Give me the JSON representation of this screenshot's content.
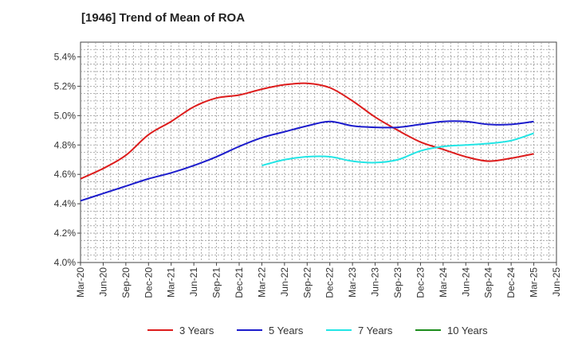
{
  "chart_data": {
    "type": "line",
    "title": "[1946]  Trend of Mean of ROA",
    "xlabel": "",
    "ylabel": "",
    "ylim": [
      4.0,
      5.5
    ],
    "yticks": [
      "4.0%",
      "4.2%",
      "4.4%",
      "4.6%",
      "4.8%",
      "5.0%",
      "5.2%",
      "5.4%"
    ],
    "ytick_values": [
      4.0,
      4.2,
      4.4,
      4.6,
      4.8,
      5.0,
      5.2,
      5.4
    ],
    "categories": [
      "Mar-20",
      "Jun-20",
      "Sep-20",
      "Dec-20",
      "Mar-21",
      "Jun-21",
      "Sep-21",
      "Dec-21",
      "Mar-22",
      "Jun-22",
      "Sep-22",
      "Dec-22",
      "Mar-23",
      "Jun-23",
      "Sep-23",
      "Dec-23",
      "Mar-24",
      "Jun-24",
      "Sep-24",
      "Dec-24",
      "Mar-25",
      "Jun-25"
    ],
    "grid": true,
    "legend_position": "bottom",
    "series": [
      {
        "name": "3 Years",
        "color": "#dd1c1c",
        "values": [
          4.57,
          4.64,
          4.73,
          4.87,
          4.96,
          5.06,
          5.12,
          5.14,
          5.18,
          5.21,
          5.22,
          5.19,
          5.1,
          4.99,
          4.9,
          4.82,
          4.77,
          4.72,
          4.69,
          4.71,
          4.74,
          null
        ]
      },
      {
        "name": "5 Years",
        "color": "#1c1ccc",
        "values": [
          4.42,
          4.47,
          4.52,
          4.57,
          4.61,
          4.66,
          4.72,
          4.79,
          4.85,
          4.89,
          4.93,
          4.96,
          4.93,
          4.92,
          4.92,
          4.94,
          4.96,
          4.96,
          4.94,
          4.94,
          4.96,
          null
        ]
      },
      {
        "name": "7 Years",
        "color": "#22e5e5",
        "values": [
          null,
          null,
          null,
          null,
          null,
          null,
          null,
          null,
          4.66,
          4.7,
          4.72,
          4.72,
          4.69,
          4.68,
          4.7,
          4.76,
          4.79,
          4.8,
          4.81,
          4.83,
          4.88,
          null
        ]
      },
      {
        "name": "10 Years",
        "color": "#1c8c1c",
        "values": [
          null,
          null,
          null,
          null,
          null,
          null,
          null,
          null,
          null,
          null,
          null,
          null,
          null,
          null,
          null,
          null,
          null,
          null,
          null,
          null,
          null,
          null
        ]
      }
    ]
  }
}
